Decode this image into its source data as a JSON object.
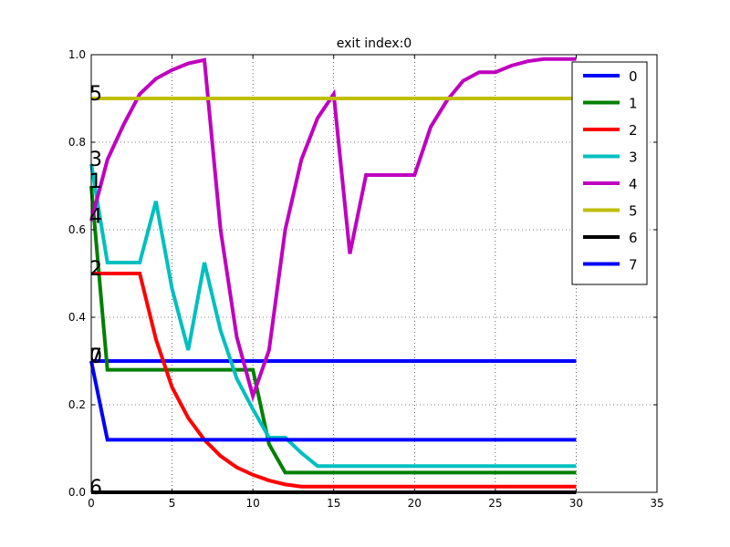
{
  "chart_data": {
    "type": "line",
    "title": "exit index:0",
    "xlabel": "",
    "ylabel": "",
    "xlim": [
      0,
      35
    ],
    "ylim": [
      0.0,
      1.0
    ],
    "xticks": [
      "0",
      "5",
      "10",
      "15",
      "20",
      "25",
      "30",
      "35"
    ],
    "yticks": [
      "0.0",
      "0.2",
      "0.4",
      "0.6",
      "0.8",
      "1.0"
    ],
    "grid": true,
    "legend_position": "top-right",
    "x": [
      0,
      1,
      2,
      3,
      4,
      5,
      6,
      7,
      8,
      9,
      10,
      11,
      12,
      13,
      14,
      15,
      16,
      17,
      18,
      19,
      20,
      21,
      22,
      23,
      24,
      25,
      26,
      27,
      28,
      29,
      30
    ],
    "series": [
      {
        "name": "0",
        "color": "#0000ff",
        "values": [
          0.3,
          0.3,
          0.3,
          0.3,
          0.3,
          0.3,
          0.3,
          0.3,
          0.3,
          0.3,
          0.3,
          0.3,
          0.3,
          0.3,
          0.3,
          0.3,
          0.3,
          0.3,
          0.3,
          0.3,
          0.3,
          0.3,
          0.3,
          0.3,
          0.3,
          0.3,
          0.3,
          0.3,
          0.3,
          0.3,
          0.3
        ]
      },
      {
        "name": "1",
        "color": "#008000",
        "values": [
          0.7,
          0.28,
          0.28,
          0.28,
          0.28,
          0.28,
          0.28,
          0.28,
          0.28,
          0.28,
          0.28,
          0.11,
          0.045,
          0.045,
          0.045,
          0.045,
          0.045,
          0.045,
          0.045,
          0.045,
          0.045,
          0.045,
          0.045,
          0.045,
          0.045,
          0.045,
          0.045,
          0.045,
          0.045,
          0.045,
          0.045
        ]
      },
      {
        "name": "2",
        "color": "#ff0000",
        "values": [
          0.5,
          0.5,
          0.5,
          0.5,
          0.35,
          0.24,
          0.17,
          0.12,
          0.083,
          0.057,
          0.04,
          0.027,
          0.018,
          0.013,
          0.013,
          0.013,
          0.013,
          0.013,
          0.013,
          0.013,
          0.013,
          0.013,
          0.013,
          0.013,
          0.013,
          0.013,
          0.013,
          0.013,
          0.013,
          0.013,
          0.013
        ]
      },
      {
        "name": "3",
        "color": "#00bfbf",
        "values": [
          0.75,
          0.525,
          0.525,
          0.525,
          0.665,
          0.465,
          0.325,
          0.525,
          0.37,
          0.26,
          0.19,
          0.125,
          0.125,
          0.09,
          0.06,
          0.06,
          0.06,
          0.06,
          0.06,
          0.06,
          0.06,
          0.06,
          0.06,
          0.06,
          0.06,
          0.06,
          0.06,
          0.06,
          0.06,
          0.06,
          0.06
        ]
      },
      {
        "name": "4",
        "color": "#bf00bf",
        "values": [
          0.62,
          0.76,
          0.84,
          0.91,
          0.945,
          0.965,
          0.98,
          0.988,
          0.6,
          0.355,
          0.22,
          0.325,
          0.6,
          0.76,
          0.855,
          0.91,
          0.545,
          0.725,
          0.725,
          0.725,
          0.725,
          0.835,
          0.895,
          0.94,
          0.96,
          0.96,
          0.975,
          0.985,
          0.99,
          0.99,
          0.99
        ]
      },
      {
        "name": "5",
        "color": "#bfbf00",
        "values": [
          0.9,
          0.9,
          0.9,
          0.9,
          0.9,
          0.9,
          0.9,
          0.9,
          0.9,
          0.9,
          0.9,
          0.9,
          0.9,
          0.9,
          0.9,
          0.9,
          0.9,
          0.9,
          0.9,
          0.9,
          0.9,
          0.9,
          0.9,
          0.9,
          0.9,
          0.9,
          0.9,
          0.9,
          0.9,
          0.9,
          0.9
        ]
      },
      {
        "name": "6",
        "color": "#000000",
        "values": [
          0,
          0,
          0,
          0,
          0,
          0,
          0,
          0,
          0,
          0,
          0,
          0,
          0,
          0,
          0,
          0,
          0,
          0,
          0,
          0,
          0,
          0,
          0,
          0,
          0,
          0,
          0,
          0,
          0,
          0,
          0
        ]
      },
      {
        "name": "7",
        "color": "#0000ff",
        "values": [
          0.3,
          0.12,
          0.12,
          0.12,
          0.12,
          0.12,
          0.12,
          0.12,
          0.12,
          0.12,
          0.12,
          0.12,
          0.12,
          0.12,
          0.12,
          0.12,
          0.12,
          0.12,
          0.12,
          0.12,
          0.12,
          0.12,
          0.12,
          0.12,
          0.12,
          0.12,
          0.12,
          0.12,
          0.12,
          0.12,
          0.12
        ]
      }
    ],
    "annotations": [
      {
        "text": "5",
        "x": 0,
        "y": 0.9
      },
      {
        "text": "3",
        "x": 0,
        "y": 0.75
      },
      {
        "text": "1",
        "x": 0,
        "y": 0.7
      },
      {
        "text": "4",
        "x": 0,
        "y": 0.62
      },
      {
        "text": "2",
        "x": 0,
        "y": 0.5
      },
      {
        "text": "0",
        "x": 0,
        "y": 0.3
      },
      {
        "text": "7",
        "x": 0,
        "y": 0.3
      },
      {
        "text": "6",
        "x": 0,
        "y": 0.0
      }
    ]
  }
}
